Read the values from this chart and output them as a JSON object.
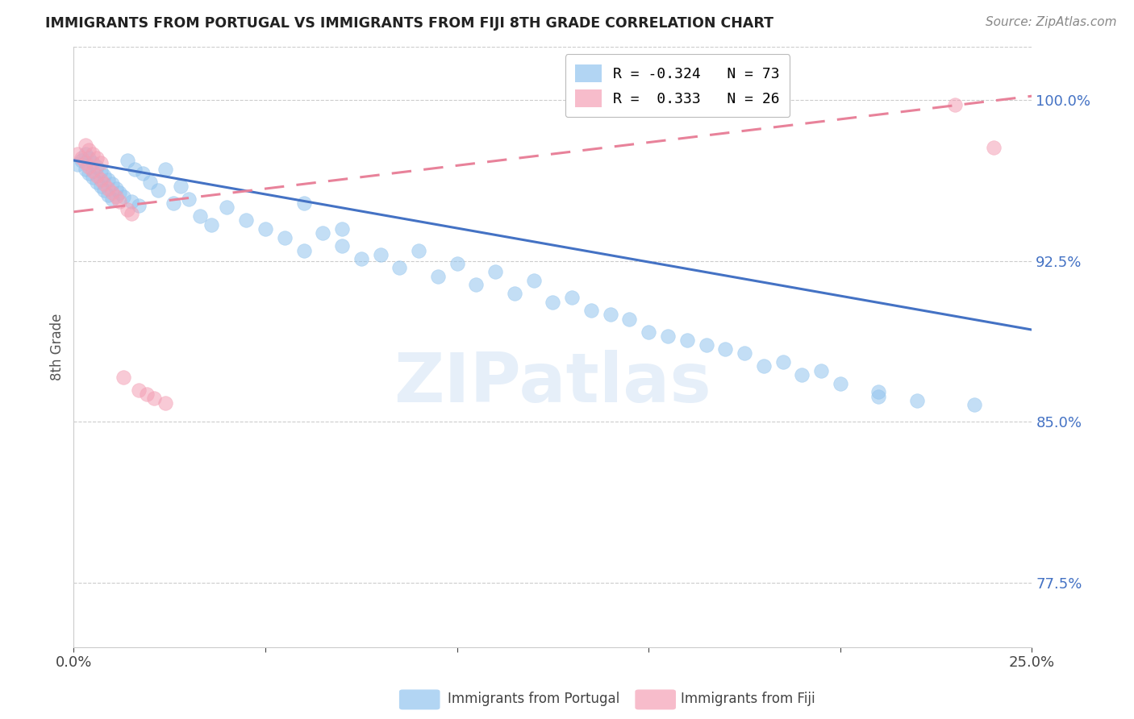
{
  "title": "IMMIGRANTS FROM PORTUGAL VS IMMIGRANTS FROM FIJI 8TH GRADE CORRELATION CHART",
  "source": "Source: ZipAtlas.com",
  "ylabel": "8th Grade",
  "right_ytick_labels": [
    "100.0%",
    "92.5%",
    "85.0%",
    "77.5%"
  ],
  "right_ytick_vals": [
    1.0,
    0.925,
    0.85,
    0.775
  ],
  "legend_portugal": "R = -0.324   N = 73",
  "legend_fiji": "R =  0.333   N = 26",
  "legend_label_portugal": "Immigrants from Portugal",
  "legend_label_fiji": "Immigrants from Fiji",
  "color_portugal": "#92C4EE",
  "color_fiji": "#F4A0B5",
  "color_trendline_portugal": "#4472C4",
  "color_trendline_fiji": "#E8829A",
  "background": "#FFFFFF",
  "xlim": [
    0.0,
    0.25
  ],
  "ylim": [
    0.745,
    1.025
  ],
  "portugal_trend_x": [
    0.0,
    0.25
  ],
  "portugal_trend_y": [
    0.972,
    0.893
  ],
  "fiji_trend_x": [
    0.0,
    0.25
  ],
  "fiji_trend_y": [
    0.948,
    1.002
  ],
  "portugal_points_x": [
    0.001,
    0.002,
    0.003,
    0.003,
    0.004,
    0.004,
    0.005,
    0.005,
    0.006,
    0.006,
    0.007,
    0.007,
    0.008,
    0.008,
    0.009,
    0.009,
    0.01,
    0.01,
    0.011,
    0.012,
    0.013,
    0.014,
    0.015,
    0.016,
    0.017,
    0.018,
    0.02,
    0.022,
    0.024,
    0.026,
    0.028,
    0.03,
    0.033,
    0.036,
    0.04,
    0.045,
    0.05,
    0.055,
    0.06,
    0.065,
    0.07,
    0.08,
    0.09,
    0.1,
    0.11,
    0.12,
    0.13,
    0.14,
    0.15,
    0.16,
    0.17,
    0.18,
    0.19,
    0.2,
    0.21,
    0.22,
    0.06,
    0.07,
    0.075,
    0.085,
    0.095,
    0.105,
    0.115,
    0.125,
    0.135,
    0.145,
    0.155,
    0.165,
    0.175,
    0.185,
    0.195,
    0.21,
    0.235
  ],
  "portugal_points_y": [
    0.97,
    0.972,
    0.968,
    0.975,
    0.966,
    0.973,
    0.964,
    0.971,
    0.962,
    0.969,
    0.96,
    0.967,
    0.958,
    0.965,
    0.956,
    0.963,
    0.954,
    0.961,
    0.959,
    0.957,
    0.955,
    0.972,
    0.953,
    0.968,
    0.951,
    0.966,
    0.962,
    0.958,
    0.968,
    0.952,
    0.96,
    0.954,
    0.946,
    0.942,
    0.95,
    0.944,
    0.94,
    0.936,
    0.952,
    0.938,
    0.932,
    0.928,
    0.93,
    0.924,
    0.92,
    0.916,
    0.908,
    0.9,
    0.892,
    0.888,
    0.884,
    0.876,
    0.872,
    0.868,
    0.864,
    0.86,
    0.93,
    0.94,
    0.926,
    0.922,
    0.918,
    0.914,
    0.91,
    0.906,
    0.902,
    0.898,
    0.89,
    0.886,
    0.882,
    0.878,
    0.874,
    0.862,
    0.858
  ],
  "fiji_points_x": [
    0.001,
    0.002,
    0.003,
    0.003,
    0.004,
    0.004,
    0.005,
    0.005,
    0.006,
    0.006,
    0.007,
    0.007,
    0.008,
    0.009,
    0.01,
    0.011,
    0.012,
    0.013,
    0.014,
    0.015,
    0.017,
    0.019,
    0.021,
    0.024,
    0.23,
    0.24
  ],
  "fiji_points_y": [
    0.975,
    0.973,
    0.971,
    0.979,
    0.969,
    0.977,
    0.967,
    0.975,
    0.965,
    0.973,
    0.963,
    0.971,
    0.961,
    0.959,
    0.957,
    0.955,
    0.953,
    0.871,
    0.949,
    0.947,
    0.865,
    0.863,
    0.861,
    0.859,
    0.998,
    0.978
  ]
}
